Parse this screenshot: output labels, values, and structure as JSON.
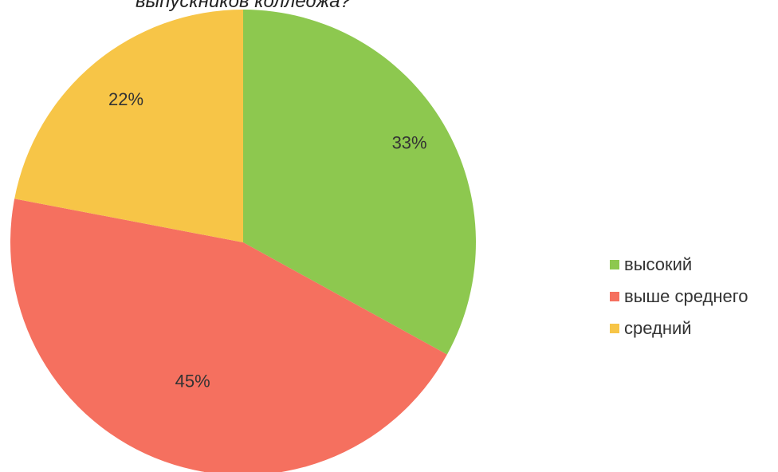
{
  "chart_data": {
    "type": "pie",
    "title": "выпускников колледжа?",
    "categories": [
      "высокий",
      "выше среднего",
      "средний"
    ],
    "values": [
      33,
      45,
      22
    ],
    "labels": [
      "33%",
      "45%",
      "22%"
    ],
    "colors": [
      "#8dc84f",
      "#f5705f",
      "#f7c547"
    ],
    "legend": {
      "position": "right",
      "items": [
        {
          "label": "высокий",
          "color": "#8dc84f"
        },
        {
          "label": "выше среднего",
          "color": "#f5705f"
        },
        {
          "label": "средний",
          "color": "#f7c547"
        }
      ]
    }
  }
}
